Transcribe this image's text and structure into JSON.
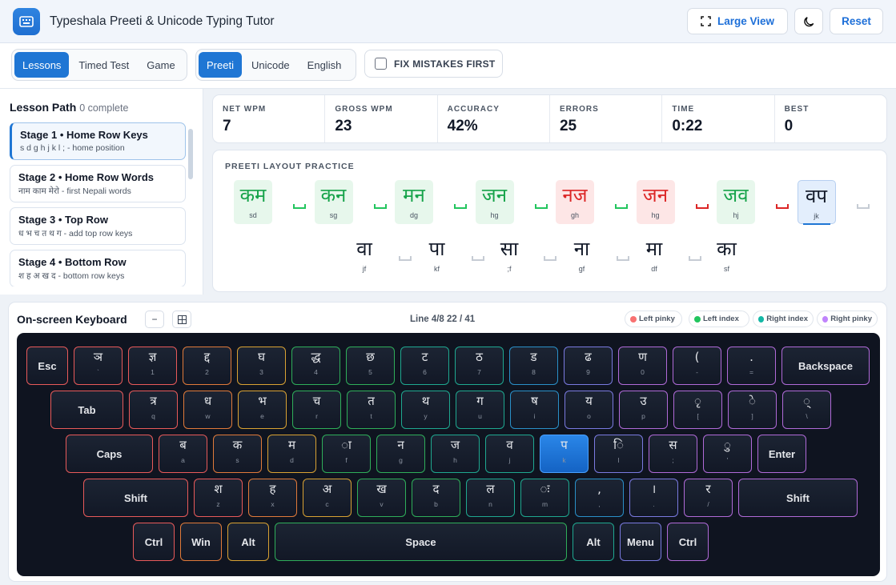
{
  "header": {
    "title": "Typeshala Preeti & Unicode Typing Tutor",
    "large_view": "Large View",
    "reset": "Reset"
  },
  "modes": {
    "tabs": [
      "Lessons",
      "Timed Test",
      "Game"
    ],
    "layouts": [
      "Preeti",
      "Unicode",
      "English"
    ],
    "fix_mistakes": "FIX MISTAKES FIRST"
  },
  "lesson_path": {
    "title": "Lesson Path",
    "progress": "0 complete",
    "stages": [
      {
        "title": "Stage 1 • Home Row Keys",
        "sub": "s d g h j k l ; - home position"
      },
      {
        "title": "Stage 2 • Home Row Words",
        "sub": "नाम काम मेरो - first Nepali words"
      },
      {
        "title": "Stage 3 • Top Row",
        "sub": "ध भ च त थ ग - add top row keys"
      },
      {
        "title": "Stage 4 • Bottom Row",
        "sub": "श ह अ ख द - bottom row keys"
      }
    ]
  },
  "stats": [
    {
      "label": "NET WPM",
      "value": "7"
    },
    {
      "label": "GROSS WPM",
      "value": "23"
    },
    {
      "label": "ACCURACY",
      "value": "42%"
    },
    {
      "label": "ERRORS",
      "value": "25"
    },
    {
      "label": "TIME",
      "value": "0:22"
    },
    {
      "label": "BEST",
      "value": "0"
    }
  ],
  "practice": {
    "title": "PREETI LAYOUT PRACTICE",
    "row1": [
      {
        "w": "कम",
        "k": "sd",
        "state": "ok"
      },
      {
        "w": "कन",
        "k": "sg",
        "state": "ok"
      },
      {
        "w": "मन",
        "k": "dg",
        "state": "ok"
      },
      {
        "w": "जन",
        "k": "hg",
        "state": "ok"
      },
      {
        "w": "नज",
        "k": "gh",
        "state": "bad"
      },
      {
        "w": "जन",
        "k": "hg",
        "state": "bad"
      },
      {
        "w": "जव",
        "k": "hj",
        "state": "ok"
      },
      {
        "w": "वप",
        "k": "jk",
        "state": "cur"
      }
    ],
    "spaces1": [
      "ok",
      "ok",
      "ok",
      "ok",
      "ok",
      "bad",
      "bad",
      "pend"
    ],
    "row2": [
      {
        "w": "वा",
        "k": "jf"
      },
      {
        "w": "पा",
        "k": "kf"
      },
      {
        "w": "सा",
        "k": ";f"
      },
      {
        "w": "ना",
        "k": "gf"
      },
      {
        "w": "मा",
        "k": "df"
      },
      {
        "w": "का",
        "k": "sf"
      }
    ]
  },
  "keyboard": {
    "title": "On-screen Keyboard",
    "minus": "−",
    "grid_icon": "grid-icon",
    "line_info": "Line 4/8 22 / 41",
    "legend": [
      {
        "label": "Left pinky",
        "color": "#f87171"
      },
      {
        "label": "Left index",
        "color": "#22c55e"
      },
      {
        "label": "Right index",
        "color": "#14b8a6"
      },
      {
        "label": "Right pinky",
        "color": "#c084fc"
      }
    ],
    "rows": [
      [
        {
          "t": "Esc",
          "big": true
        },
        {
          "g": "ञ",
          "s": "`"
        },
        {
          "g": "ज्ञ",
          "s": "1"
        },
        {
          "g": "द्द",
          "s": "2"
        },
        {
          "g": "घ",
          "s": "3"
        },
        {
          "g": "द्ध",
          "s": "4"
        },
        {
          "g": "छ",
          "s": "5"
        },
        {
          "g": "ट",
          "s": "6"
        },
        {
          "g": "ठ",
          "s": "7"
        },
        {
          "g": "ड",
          "s": "8"
        },
        {
          "g": "ढ",
          "s": "9"
        },
        {
          "g": "ण",
          "s": "0"
        },
        {
          "g": "(",
          "s": "-"
        },
        {
          "g": ".",
          "s": "="
        },
        {
          "t": "Backspace",
          "big": true
        }
      ],
      [
        {
          "t": "Tab",
          "big": true
        },
        {
          "g": "त्र",
          "s": "q"
        },
        {
          "g": "ध",
          "s": "w"
        },
        {
          "g": "भ",
          "s": "e"
        },
        {
          "g": "च",
          "s": "r"
        },
        {
          "g": "त",
          "s": "t"
        },
        {
          "g": "थ",
          "s": "y"
        },
        {
          "g": "ग",
          "s": "u"
        },
        {
          "g": "ष",
          "s": "i"
        },
        {
          "g": "य",
          "s": "o"
        },
        {
          "g": "उ",
          "s": "p"
        },
        {
          "g": "ृ",
          "s": "["
        },
        {
          "g": "े",
          "s": "]"
        },
        {
          "g": "्",
          "s": "\\"
        }
      ],
      [
        {
          "t": "Caps",
          "big": true
        },
        {
          "g": "ब",
          "s": "a"
        },
        {
          "g": "क",
          "s": "s"
        },
        {
          "g": "म",
          "s": "d"
        },
        {
          "g": "ा",
          "s": "f"
        },
        {
          "g": "न",
          "s": "g"
        },
        {
          "g": "ज",
          "s": "h"
        },
        {
          "g": "व",
          "s": "j"
        },
        {
          "g": "प",
          "s": "k"
        },
        {
          "g": "ि",
          "s": "l"
        },
        {
          "g": "स",
          "s": ";"
        },
        {
          "g": "ु",
          "s": "'"
        },
        {
          "t": "Enter",
          "big": true
        }
      ],
      [
        {
          "t": "Shift",
          "big": true
        },
        {
          "g": "श",
          "s": "z"
        },
        {
          "g": "ह",
          "s": "x"
        },
        {
          "g": "अ",
          "s": "c"
        },
        {
          "g": "ख",
          "s": "v"
        },
        {
          "g": "द",
          "s": "b"
        },
        {
          "g": "ल",
          "s": "n"
        },
        {
          "g": "ः",
          "s": "m"
        },
        {
          "g": ",",
          "s": ","
        },
        {
          "g": "।",
          "s": "."
        },
        {
          "g": "र",
          "s": "/"
        },
        {
          "t": "Shift",
          "big": true
        }
      ],
      [
        {
          "t": "Ctrl",
          "big": true
        },
        {
          "t": "Win",
          "big": true
        },
        {
          "t": "Alt",
          "big": true
        },
        {
          "t": "Space",
          "big": true
        },
        {
          "t": "Alt",
          "big": true
        },
        {
          "t": "Menu",
          "big": true
        },
        {
          "t": "Ctrl",
          "big": true
        }
      ]
    ],
    "active_key": "k"
  }
}
